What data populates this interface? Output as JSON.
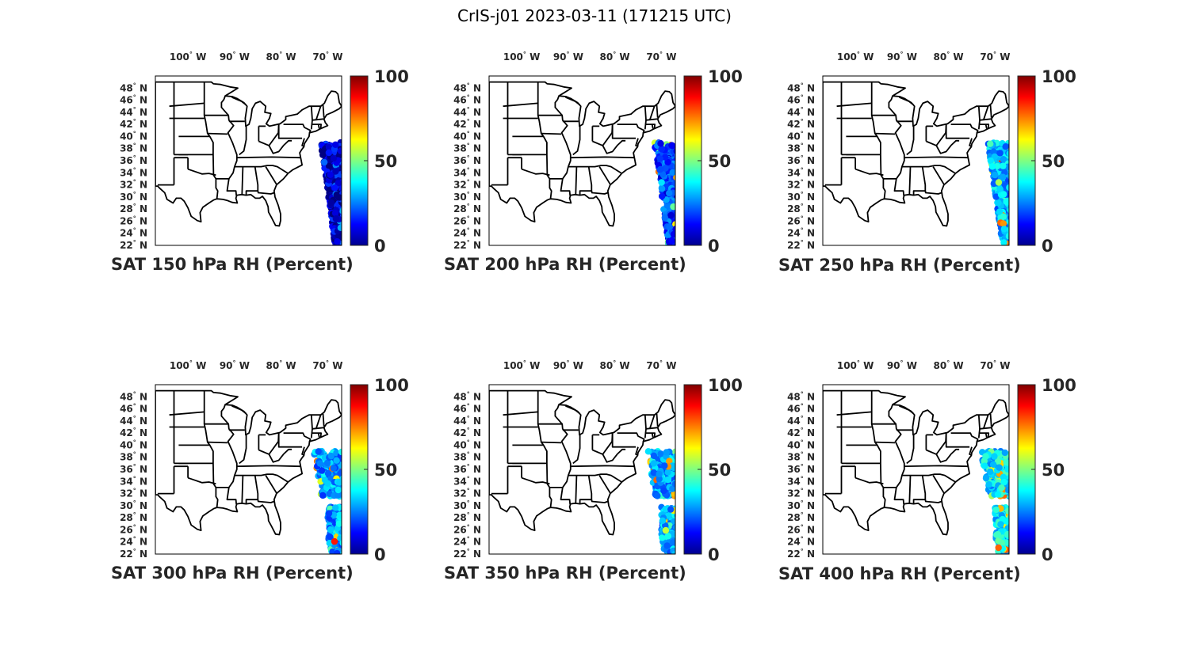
{
  "figure": {
    "title": "CrIS-j01 2023-03-11 (171215 UTC)",
    "colormap": "jet"
  },
  "map": {
    "lon_ticks": [
      {
        "value": -100,
        "label": "100",
        "hemi": "W"
      },
      {
        "value": -90,
        "label": "90",
        "hemi": "W"
      },
      {
        "value": -80,
        "label": "80",
        "hemi": "W"
      },
      {
        "value": -70,
        "label": "70",
        "hemi": "W"
      }
    ],
    "lat_ticks": [
      {
        "value": 48,
        "label": "48",
        "hemi": "N"
      },
      {
        "value": 46,
        "label": "46",
        "hemi": "N"
      },
      {
        "value": 44,
        "label": "44",
        "hemi": "N"
      },
      {
        "value": 42,
        "label": "42",
        "hemi": "N"
      },
      {
        "value": 40,
        "label": "40",
        "hemi": "N"
      },
      {
        "value": 38,
        "label": "38",
        "hemi": "N"
      },
      {
        "value": 36,
        "label": "36",
        "hemi": "N"
      },
      {
        "value": 34,
        "label": "34",
        "hemi": "N"
      },
      {
        "value": 32,
        "label": "32",
        "hemi": "N"
      },
      {
        "value": 30,
        "label": "30",
        "hemi": "N"
      },
      {
        "value": 28,
        "label": "28",
        "hemi": "N"
      },
      {
        "value": 26,
        "label": "26",
        "hemi": "N"
      },
      {
        "value": 24,
        "label": "24",
        "hemi": "N"
      },
      {
        "value": 22,
        "label": "22",
        "hemi": "N"
      }
    ],
    "lon_range": [
      -107,
      -67
    ],
    "lat_range": [
      22,
      50
    ]
  },
  "colorbar": {
    "ticks": [
      "100",
      "50",
      "0"
    ],
    "range": [
      0,
      100
    ]
  },
  "chart_data": [
    {
      "type": "scatter",
      "title": "SAT 150 hPa RH (Percent)",
      "level_hPa": 150,
      "units": "Percent",
      "rh_range": [
        0,
        100
      ],
      "swath": {
        "lon": [
          -71.5,
          -66
        ],
        "lat": [
          22,
          39
        ]
      },
      "rh_typical": 8,
      "rh_max": 30
    },
    {
      "type": "scatter",
      "title": "SAT 200 hPa RH (Percent)",
      "level_hPa": 200,
      "units": "Percent",
      "rh_range": [
        0,
        100
      ],
      "swath": {
        "lon": [
          -71.5,
          -66
        ],
        "lat": [
          22,
          39
        ]
      },
      "rh_typical": 18,
      "rh_max": 80
    },
    {
      "type": "scatter",
      "title": "SAT 250 hPa RH (Percent)",
      "level_hPa": 250,
      "units": "Percent",
      "rh_range": [
        0,
        100
      ],
      "swath": {
        "lon": [
          -71.5,
          -66
        ],
        "lat": [
          22,
          39
        ]
      },
      "rh_typical": 30,
      "rh_max": 85
    },
    {
      "type": "scatter",
      "title": "SAT 300 hPa RH (Percent)",
      "level_hPa": 300,
      "units": "Percent",
      "rh_range": [
        0,
        100
      ],
      "swath": {
        "lon": [
          -73,
          -66
        ],
        "lat": [
          22,
          39
        ]
      },
      "rh_typical": 28,
      "rh_max": 90
    },
    {
      "type": "scatter",
      "title": "SAT 350 hPa RH (Percent)",
      "level_hPa": 350,
      "units": "Percent",
      "rh_range": [
        0,
        100
      ],
      "swath": {
        "lon": [
          -73,
          -66
        ],
        "lat": [
          22,
          39
        ]
      },
      "rh_typical": 30,
      "rh_max": 85
    },
    {
      "type": "scatter",
      "title": "SAT 400 hPa RH (Percent)",
      "level_hPa": 400,
      "units": "Percent",
      "rh_range": [
        0,
        100
      ],
      "swath": {
        "lon": [
          -73,
          -66
        ],
        "lat": [
          22,
          39
        ]
      },
      "rh_typical": 35,
      "rh_max": 80
    }
  ]
}
